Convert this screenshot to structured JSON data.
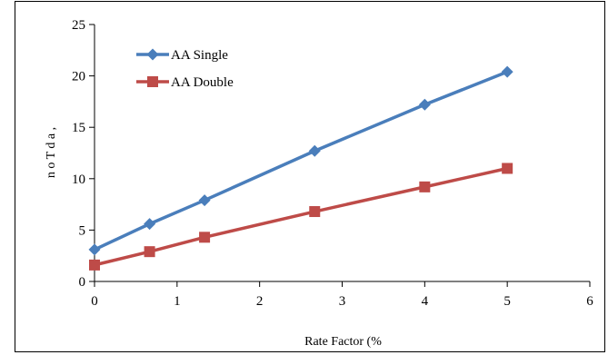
{
  "chart_data": {
    "type": "line",
    "xlabel": "Rate Factor (%",
    "ylabel": "n o T d a ,",
    "xlim": [
      0,
      6
    ],
    "ylim": [
      0,
      25
    ],
    "xticks": [
      0,
      1,
      2,
      3,
      4,
      5,
      6
    ],
    "yticks": [
      0,
      5,
      10,
      15,
      20,
      25
    ],
    "grid": false,
    "legend_position": "top-left",
    "series": [
      {
        "name": "AA Single",
        "color": "#4a7ebb",
        "marker": "diamond",
        "x": [
          0,
          0.667,
          1.333,
          2.667,
          4,
          5
        ],
        "y": [
          3.1,
          5.6,
          7.9,
          12.7,
          17.2,
          20.4
        ]
      },
      {
        "name": "AA Double",
        "color": "#be4b48",
        "marker": "square",
        "x": [
          0,
          0.667,
          1.333,
          2.667,
          4,
          5
        ],
        "y": [
          1.6,
          2.9,
          4.3,
          6.8,
          9.2,
          11.0
        ]
      }
    ]
  }
}
